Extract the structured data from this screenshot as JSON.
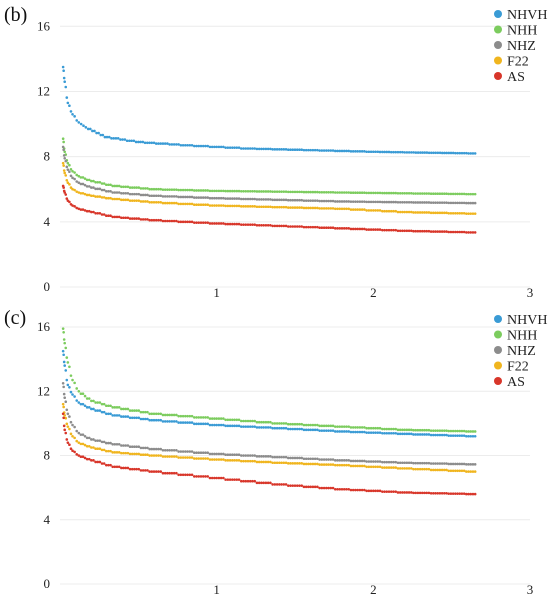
{
  "chart_data": [
    {
      "type": "scatter",
      "panel_label": "(b)",
      "title": "",
      "xlabel": "",
      "ylabel": "",
      "xlim": [
        0,
        3
      ],
      "ylim": [
        0,
        17
      ],
      "xticks": [
        "1",
        "2",
        "3"
      ],
      "yticks": [
        "0",
        "4",
        "8",
        "12",
        "16"
      ],
      "grid": true,
      "legend": "top-right",
      "series": [
        {
          "name": "NHVH",
          "color": "#3a9bd5",
          "points": [
            [
              0.02,
              13.5
            ],
            [
              0.03,
              12.6
            ],
            [
              0.05,
              11.3
            ],
            [
              0.08,
              10.6
            ],
            [
              0.12,
              10.1
            ],
            [
              0.18,
              9.7
            ],
            [
              0.3,
              9.2
            ],
            [
              0.5,
              8.9
            ],
            [
              0.8,
              8.7
            ],
            [
              1.2,
              8.5
            ],
            [
              1.6,
              8.4
            ],
            [
              2.0,
              8.3
            ],
            [
              2.3,
              8.25
            ],
            [
              2.65,
              8.2
            ]
          ]
        },
        {
          "name": "NHH",
          "color": "#7ccc5e",
          "points": [
            [
              0.02,
              9.1
            ],
            [
              0.03,
              8.3
            ],
            [
              0.05,
              7.6
            ],
            [
              0.08,
              7.1
            ],
            [
              0.12,
              6.8
            ],
            [
              0.2,
              6.5
            ],
            [
              0.35,
              6.2
            ],
            [
              0.6,
              6.0
            ],
            [
              1.0,
              5.9
            ],
            [
              1.4,
              5.85
            ],
            [
              1.8,
              5.8
            ],
            [
              2.2,
              5.75
            ],
            [
              2.65,
              5.7
            ]
          ]
        },
        {
          "name": "NHZ",
          "color": "#8c8c8c",
          "points": [
            [
              0.02,
              8.6
            ],
            [
              0.03,
              7.9
            ],
            [
              0.05,
              7.2
            ],
            [
              0.08,
              6.7
            ],
            [
              0.12,
              6.4
            ],
            [
              0.2,
              6.1
            ],
            [
              0.35,
              5.8
            ],
            [
              0.6,
              5.6
            ],
            [
              1.0,
              5.45
            ],
            [
              1.4,
              5.35
            ],
            [
              1.8,
              5.25
            ],
            [
              2.2,
              5.2
            ],
            [
              2.65,
              5.15
            ]
          ]
        },
        {
          "name": "F22",
          "color": "#f0b51e",
          "points": [
            [
              0.02,
              7.6
            ],
            [
              0.03,
              7.0
            ],
            [
              0.05,
              6.4
            ],
            [
              0.08,
              6.0
            ],
            [
              0.12,
              5.8
            ],
            [
              0.2,
              5.6
            ],
            [
              0.35,
              5.4
            ],
            [
              0.6,
              5.2
            ],
            [
              1.0,
              5.0
            ],
            [
              1.4,
              4.9
            ],
            [
              1.8,
              4.8
            ],
            [
              2.2,
              4.6
            ],
            [
              2.65,
              4.5
            ]
          ]
        },
        {
          "name": "AS",
          "color": "#d8362a",
          "points": [
            [
              0.02,
              6.2
            ],
            [
              0.03,
              5.8
            ],
            [
              0.05,
              5.3
            ],
            [
              0.08,
              5.0
            ],
            [
              0.12,
              4.8
            ],
            [
              0.2,
              4.6
            ],
            [
              0.35,
              4.3
            ],
            [
              0.6,
              4.1
            ],
            [
              1.0,
              3.9
            ],
            [
              1.4,
              3.75
            ],
            [
              1.8,
              3.6
            ],
            [
              2.2,
              3.45
            ],
            [
              2.65,
              3.35
            ]
          ]
        }
      ]
    },
    {
      "type": "scatter",
      "panel_label": "(c)",
      "title": "",
      "xlabel": "",
      "ylabel": "",
      "xlim": [
        0,
        3
      ],
      "ylim": [
        0,
        17
      ],
      "xticks": [
        "1",
        "2",
        "3"
      ],
      "yticks": [
        "0",
        "4",
        "8",
        "12",
        "16"
      ],
      "grid": true,
      "legend": "top-right",
      "series": [
        {
          "name": "NHVH",
          "color": "#3a9bd5",
          "points": [
            [
              0.02,
              14.5
            ],
            [
              0.03,
              13.6
            ],
            [
              0.05,
              12.4
            ],
            [
              0.08,
              11.8
            ],
            [
              0.12,
              11.3
            ],
            [
              0.2,
              10.9
            ],
            [
              0.35,
              10.5
            ],
            [
              0.6,
              10.2
            ],
            [
              1.0,
              9.9
            ],
            [
              1.4,
              9.7
            ],
            [
              1.8,
              9.5
            ],
            [
              2.2,
              9.35
            ],
            [
              2.65,
              9.2
            ]
          ]
        },
        {
          "name": "NHH",
          "color": "#7ccc5e",
          "points": [
            [
              0.02,
              15.9
            ],
            [
              0.03,
              15.0
            ],
            [
              0.05,
              13.8
            ],
            [
              0.08,
              12.7
            ],
            [
              0.12,
              12.0
            ],
            [
              0.2,
              11.4
            ],
            [
              0.35,
              11.0
            ],
            [
              0.6,
              10.6
            ],
            [
              1.0,
              10.3
            ],
            [
              1.4,
              10.0
            ],
            [
              1.8,
              9.8
            ],
            [
              2.2,
              9.6
            ],
            [
              2.65,
              9.5
            ]
          ]
        },
        {
          "name": "NHZ",
          "color": "#8c8c8c",
          "points": [
            [
              0.02,
              12.5
            ],
            [
              0.03,
              11.6
            ],
            [
              0.05,
              10.6
            ],
            [
              0.08,
              9.9
            ],
            [
              0.12,
              9.4
            ],
            [
              0.2,
              9.0
            ],
            [
              0.35,
              8.7
            ],
            [
              0.6,
              8.4
            ],
            [
              1.0,
              8.1
            ],
            [
              1.4,
              7.9
            ],
            [
              1.8,
              7.7
            ],
            [
              2.2,
              7.55
            ],
            [
              2.65,
              7.45
            ]
          ]
        },
        {
          "name": "F22",
          "color": "#f0b51e",
          "points": [
            [
              0.02,
              11.2
            ],
            [
              0.03,
              10.5
            ],
            [
              0.05,
              9.8
            ],
            [
              0.08,
              9.2
            ],
            [
              0.12,
              8.8
            ],
            [
              0.2,
              8.5
            ],
            [
              0.35,
              8.2
            ],
            [
              0.6,
              8.0
            ],
            [
              1.0,
              7.75
            ],
            [
              1.4,
              7.55
            ],
            [
              1.8,
              7.4
            ],
            [
              2.2,
              7.2
            ],
            [
              2.65,
              7.0
            ]
          ]
        },
        {
          "name": "AS",
          "color": "#d8362a",
          "points": [
            [
              0.02,
              10.6
            ],
            [
              0.03,
              9.6
            ],
            [
              0.05,
              8.8
            ],
            [
              0.08,
              8.3
            ],
            [
              0.12,
              8.0
            ],
            [
              0.2,
              7.7
            ],
            [
              0.35,
              7.3
            ],
            [
              0.6,
              7.0
            ],
            [
              1.0,
              6.6
            ],
            [
              1.4,
              6.2
            ],
            [
              1.8,
              5.9
            ],
            [
              2.2,
              5.7
            ],
            [
              2.65,
              5.6
            ]
          ]
        }
      ]
    }
  ]
}
